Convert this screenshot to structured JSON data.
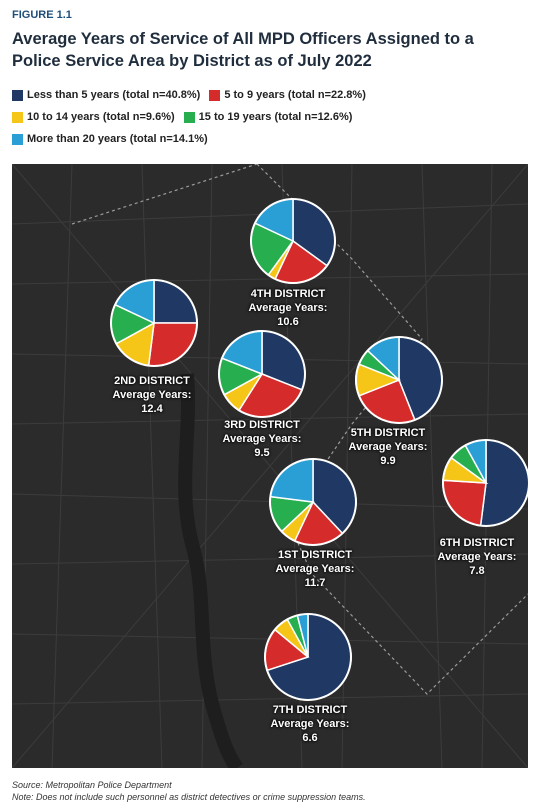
{
  "figure_label": "FIGURE 1.1",
  "colors": {
    "navy": "#1f3864",
    "red": "#d62b2b",
    "yellow": "#f5c518",
    "green": "#27ae4f",
    "blue": "#2a9fd6"
  },
  "chart_data": {
    "type": "pie",
    "title": "Average Years of Service of All MPD Officers Assigned to a Police Service Area by District as of July 2022",
    "legend": [
      {
        "label": "Less than 5 years (total n=40.8%)",
        "color": "#1f3864"
      },
      {
        "label": "5 to 9 years (total n=22.8%)",
        "color": "#d62b2b"
      },
      {
        "label": "10 to 14 years (total n=9.6%)",
        "color": "#f5c518"
      },
      {
        "label": "15 to 19 years (total n=12.6%)",
        "color": "#27ae4f"
      },
      {
        "label": "More than 20 years (total n=14.1%)",
        "color": "#2a9fd6"
      }
    ],
    "series_colors": [
      "#1f3864",
      "#d62b2b",
      "#f5c518",
      "#27ae4f",
      "#2a9fd6"
    ],
    "districts": [
      {
        "key": "d4",
        "name": "4TH DISTRICT",
        "avg_label": "Average Years:",
        "avg": "10.6",
        "values": [
          35,
          22,
          3,
          22,
          18
        ]
      },
      {
        "key": "d2",
        "name": "2ND DISTRICT",
        "avg_label": "Average Years:",
        "avg": "12.4",
        "values": [
          25,
          27,
          15,
          15,
          18
        ]
      },
      {
        "key": "d3",
        "name": "3RD DISTRICT",
        "avg_label": "Average Years:",
        "avg": "9.5",
        "values": [
          31,
          28,
          8,
          14,
          19
        ]
      },
      {
        "key": "d5",
        "name": "5TH DISTRICT",
        "avg_label": "Average Years:",
        "avg": "9.9",
        "values": [
          44,
          25,
          12,
          6,
          13
        ]
      },
      {
        "key": "d1",
        "name": "1ST DISTRICT",
        "avg_label": "Average Years:",
        "avg": "11.7",
        "values": [
          38,
          19,
          6,
          14,
          23
        ]
      },
      {
        "key": "d6",
        "name": "6TH DISTRICT",
        "avg_label": "Average Years:",
        "avg": "7.8",
        "values": [
          52,
          24,
          9,
          7,
          8
        ]
      },
      {
        "key": "d7",
        "name": "7TH DISTRICT",
        "avg_label": "Average Years:",
        "avg": "6.6",
        "values": [
          70,
          16,
          6,
          4,
          4
        ]
      }
    ]
  },
  "footer": {
    "source": "Source: Metropolitan Police Department",
    "note": "Note: Does not include such personnel as district detectives or crime suppression teams."
  }
}
